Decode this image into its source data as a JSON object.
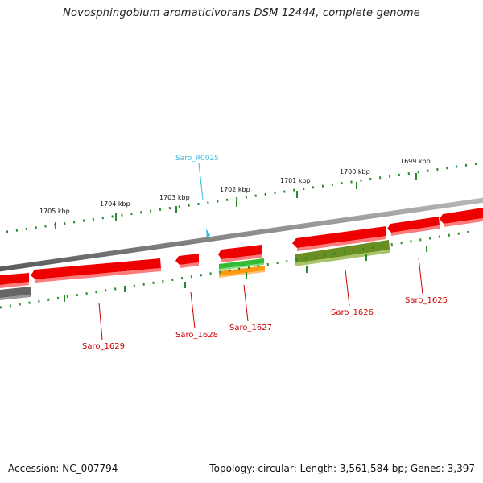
{
  "title": "Novosphingobium aromaticivorans DSM 12444, complete genome",
  "footer": {
    "accession": "Accession: NC_007794",
    "summary": "Topology: circular; Length: 3,561,584 bp; Genes: 3,397"
  },
  "colors": {
    "backbone": "#8c8c8c",
    "tick": "#2a8a2a",
    "gene": "#ee0000",
    "gene_shadow": "#ff7a7a",
    "rna_label": "#33bbdd",
    "gene_label": "#cc0000",
    "feature_green": "#33bb33",
    "feature_orange": "#ff9911",
    "feature_olive": "#6b8e23",
    "feature_gray": "#666666"
  },
  "scale_labels": [
    "1705 kbp",
    "1704 kbp",
    "1703 kbp",
    "1702 kbp",
    "1701 kbp",
    "1700 kbp",
    "1699 kbp"
  ],
  "rna_label": "Saro_R0025",
  "gene_labels": [
    "Saro_1629",
    "Saro_1628",
    "Saro_1627",
    "Saro_1626",
    "Saro_1625"
  ]
}
